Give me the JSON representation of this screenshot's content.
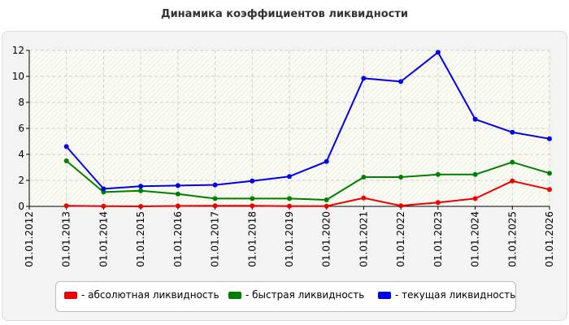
{
  "title": "Динамика коэффициентов ликвидности",
  "chart_data": {
    "type": "line",
    "categories": [
      "01.01.2012",
      "01.01.2013",
      "01.01.2014",
      "01.01.2015",
      "01.01.2016",
      "01.01.2017",
      "01.01.2018",
      "01.01.2019",
      "01.01.2020",
      "01.01.2021",
      "01.01.2022",
      "01.01.2023",
      "01.01.2024",
      "01.01.2025",
      "01.01.2026"
    ],
    "ylim": [
      0,
      12
    ],
    "yticks": [
      0,
      2,
      4,
      6,
      8,
      10,
      12
    ],
    "grid": true,
    "legend_position": "bottom",
    "series": [
      {
        "name": "- абсолютная ликвидность",
        "color": "#ee0000",
        "values": [
          null,
          0.05,
          0.02,
          0.0,
          0.03,
          0.05,
          0.05,
          0.02,
          0.02,
          0.65,
          0.05,
          0.3,
          0.6,
          1.95,
          1.3
        ]
      },
      {
        "name": "- быстрая ликвидность",
        "color": "#008000",
        "values": [
          null,
          3.5,
          1.1,
          1.2,
          0.95,
          0.6,
          0.6,
          0.6,
          0.5,
          2.25,
          2.25,
          2.45,
          2.45,
          3.4,
          2.55
        ]
      },
      {
        "name": "- текущая ликвидность",
        "color": "#0000ee",
        "values": [
          null,
          4.6,
          1.35,
          1.55,
          1.6,
          1.65,
          1.95,
          2.3,
          3.45,
          9.85,
          9.6,
          11.85,
          6.7,
          5.7,
          5.2
        ]
      }
    ]
  }
}
